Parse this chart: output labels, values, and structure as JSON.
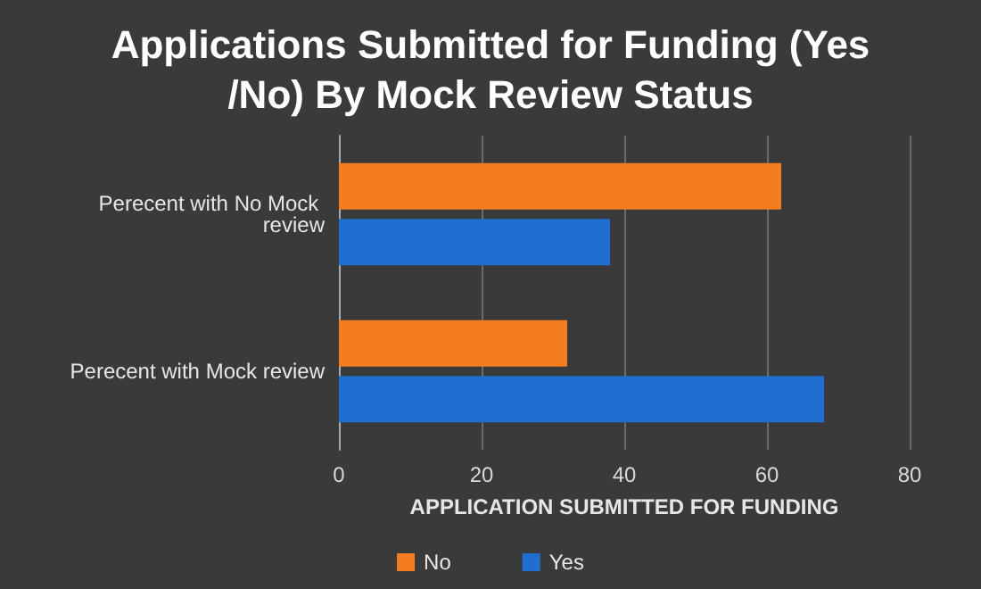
{
  "chart_data": {
    "type": "bar",
    "orientation": "horizontal",
    "title": "Applications Submitted for Funding (Yes/No) By Mock Review Status",
    "xlabel": "APPLICATION SUBMITTED FOR FUNDING",
    "categories": [
      "Perecent with No Mock review",
      "Perecent with Mock review"
    ],
    "series": [
      {
        "name": "No",
        "color": "#f57c1f",
        "values": [
          62,
          32
        ]
      },
      {
        "name": "Yes",
        "color": "#1f6fd1",
        "values": [
          38,
          68
        ]
      }
    ],
    "xlim": [
      0,
      80
    ],
    "xticks": [
      0,
      20,
      40,
      60,
      80
    ],
    "grid": "x",
    "legend": "bottom"
  }
}
